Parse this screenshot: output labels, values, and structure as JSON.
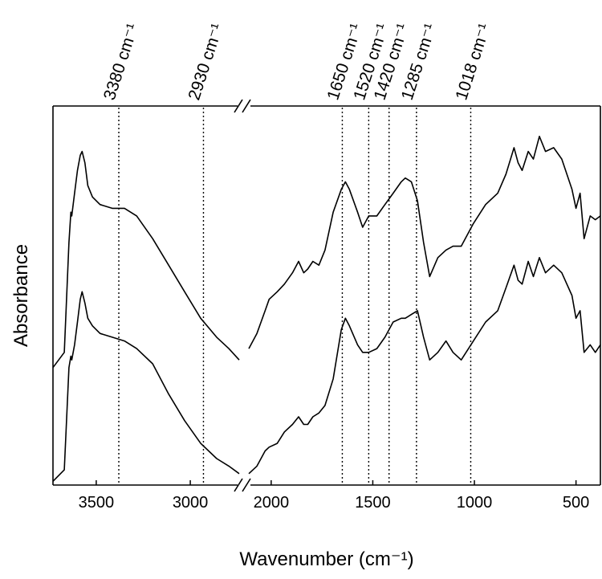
{
  "chart_data": {
    "type": "line",
    "xlabel": "Wavenumber (cm⁻¹)",
    "ylabel": "Absorbance",
    "x_segments": [
      {
        "xlim": [
          3730,
          2740
        ],
        "xticks": [
          3500,
          3000
        ]
      },
      {
        "xlim": [
          2110,
          380
        ],
        "xticks": [
          2000,
          1500,
          1000,
          500
        ]
      }
    ],
    "ylim": [
      0,
      1
    ],
    "annotations": [
      {
        "value": 3380,
        "label": "3380 cm⁻¹"
      },
      {
        "value": 2930,
        "label": "2930 cm⁻¹"
      },
      {
        "value": 1650,
        "label": "1650 cm⁻¹"
      },
      {
        "value": 1520,
        "label": "1520 cm⁻¹"
      },
      {
        "value": 1420,
        "label": "1420 cm⁻¹"
      },
      {
        "value": 1285,
        "label": "1285 cm⁻¹"
      },
      {
        "value": 1018,
        "label": "1018 cm⁻¹"
      }
    ],
    "x": [
      3730,
      3670,
      3645,
      3635,
      3630,
      3615,
      3600,
      3585,
      3575,
      3560,
      3545,
      3520,
      3480,
      3415,
      3350,
      3285,
      3200,
      3115,
      3030,
      2945,
      2860,
      2795,
      2740,
      null,
      2110,
      2070,
      2030,
      2010,
      1970,
      1935,
      1895,
      1865,
      1840,
      1820,
      1795,
      1765,
      1735,
      1695,
      1655,
      1635,
      1615,
      1575,
      1550,
      1520,
      1480,
      1440,
      1400,
      1360,
      1340,
      1310,
      1280,
      1250,
      1220,
      1180,
      1140,
      1105,
      1065,
      1005,
      945,
      885,
      845,
      805,
      785,
      765,
      735,
      710,
      680,
      650,
      610,
      570,
      520,
      500,
      480,
      460,
      430,
      405,
      380
    ],
    "series": [
      {
        "color": "#000000",
        "values": [
          0.31,
          0.35,
          0.64,
          0.72,
          0.71,
          0.77,
          0.83,
          0.87,
          0.88,
          0.85,
          0.79,
          0.76,
          0.74,
          0.73,
          0.73,
          0.71,
          0.65,
          0.58,
          0.51,
          0.44,
          0.39,
          0.36,
          0.33,
          null,
          0.36,
          0.4,
          0.46,
          0.49,
          0.51,
          0.53,
          0.56,
          0.59,
          0.56,
          0.57,
          0.59,
          0.58,
          0.62,
          0.72,
          0.78,
          0.8,
          0.78,
          0.72,
          0.68,
          0.71,
          0.71,
          0.74,
          0.77,
          0.8,
          0.81,
          0.8,
          0.75,
          0.64,
          0.55,
          0.6,
          0.62,
          0.63,
          0.63,
          0.69,
          0.74,
          0.77,
          0.82,
          0.89,
          0.85,
          0.83,
          0.88,
          0.86,
          0.92,
          0.88,
          0.89,
          0.86,
          0.78,
          0.73,
          0.77,
          0.65,
          0.71,
          0.7,
          0.71
        ]
      },
      {
        "color": "#000000",
        "values": [
          0.01,
          0.04,
          0.31,
          0.34,
          0.33,
          0.37,
          0.43,
          0.49,
          0.51,
          0.48,
          0.44,
          0.42,
          0.4,
          0.39,
          0.38,
          0.36,
          0.32,
          0.24,
          0.17,
          0.11,
          0.07,
          0.05,
          0.03,
          null,
          0.03,
          0.05,
          0.09,
          0.1,
          0.11,
          0.14,
          0.16,
          0.18,
          0.16,
          0.16,
          0.18,
          0.19,
          0.21,
          0.28,
          0.41,
          0.44,
          0.42,
          0.37,
          0.35,
          0.35,
          0.36,
          0.39,
          0.43,
          0.44,
          0.44,
          0.45,
          0.46,
          0.39,
          0.33,
          0.35,
          0.38,
          0.35,
          0.33,
          0.38,
          0.43,
          0.46,
          0.52,
          0.58,
          0.54,
          0.53,
          0.59,
          0.55,
          0.6,
          0.56,
          0.58,
          0.56,
          0.5,
          0.44,
          0.46,
          0.35,
          0.37,
          0.35,
          0.37
        ]
      }
    ]
  }
}
